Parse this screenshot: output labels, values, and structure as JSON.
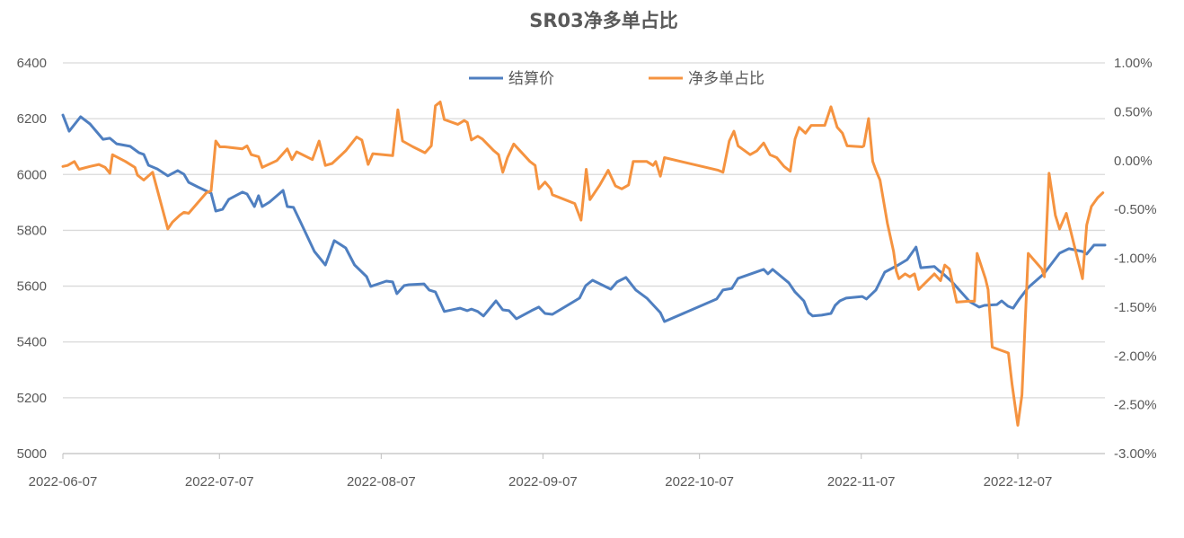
{
  "chart_data": {
    "type": "line",
    "title": "SR03净多单占比",
    "legend_position": "top-center",
    "grid": true,
    "x_start_date": "2022-06-07",
    "x_unit": "days since 2022-06-07",
    "xlim": [
      0,
      199.7
    ],
    "x_ticks": [
      {
        "day": 0,
        "label": "2022-06-07"
      },
      {
        "day": 30,
        "label": "2022-07-07"
      },
      {
        "day": 61,
        "label": "2022-08-07"
      },
      {
        "day": 92,
        "label": "2022-09-07"
      },
      {
        "day": 122,
        "label": "2022-10-07"
      },
      {
        "day": 153,
        "label": "2022-11-07"
      },
      {
        "day": 183,
        "label": "2022-12-07"
      }
    ],
    "y_left": {
      "ylim": [
        5000,
        6400
      ],
      "ticks": [
        5000,
        5200,
        5400,
        5600,
        5800,
        6000,
        6200,
        6400
      ],
      "tick_labels": [
        "5000",
        "5200",
        "5400",
        "5600",
        "5800",
        "6000",
        "6200",
        "6400"
      ]
    },
    "y_right": {
      "ylim": [
        -3.0,
        1.0
      ],
      "ticks": [
        -3.0,
        -2.5,
        -2.0,
        -1.5,
        -1.0,
        -0.5,
        0.0,
        0.5,
        1.0
      ],
      "tick_labels": [
        "-3.00%",
        "-2.50%",
        "-2.00%",
        "-1.50%",
        "-1.00%",
        "-0.50%",
        "0.00%",
        "0.50%",
        "1.00%"
      ]
    },
    "series": [
      {
        "name": "结算价",
        "axis": "left",
        "color": "#4f7fc0",
        "points": [
          [
            0,
            6213
          ],
          [
            1.2,
            6155
          ],
          [
            3.4,
            6207
          ],
          [
            5.2,
            6181
          ],
          [
            7.7,
            6126
          ],
          [
            9,
            6130
          ],
          [
            10.3,
            6110
          ],
          [
            12.9,
            6101
          ],
          [
            14.6,
            6078
          ],
          [
            15.5,
            6072
          ],
          [
            16.4,
            6033
          ],
          [
            18.1,
            6020
          ],
          [
            20.1,
            5995
          ],
          [
            22,
            6014
          ],
          [
            23.2,
            6001
          ],
          [
            24.1,
            5972
          ],
          [
            25.8,
            5956
          ],
          [
            28.4,
            5933
          ],
          [
            29.3,
            5869
          ],
          [
            30.6,
            5875
          ],
          [
            31.8,
            5911
          ],
          [
            34.4,
            5937
          ],
          [
            35.3,
            5930
          ],
          [
            36.7,
            5885
          ],
          [
            37.5,
            5924
          ],
          [
            38.2,
            5885
          ],
          [
            39.6,
            5901
          ],
          [
            42.2,
            5943
          ],
          [
            43,
            5885
          ],
          [
            44.2,
            5882
          ],
          [
            45.6,
            5827
          ],
          [
            48.2,
            5724
          ],
          [
            50.3,
            5676
          ],
          [
            52,
            5763
          ],
          [
            54.2,
            5737
          ],
          [
            55.9,
            5676
          ],
          [
            58.2,
            5634
          ],
          [
            59,
            5599
          ],
          [
            62,
            5618
          ],
          [
            63.2,
            5615
          ],
          [
            64,
            5573
          ],
          [
            65.4,
            5602
          ],
          [
            66.3,
            5605
          ],
          [
            69.2,
            5608
          ],
          [
            70.2,
            5586
          ],
          [
            71.4,
            5579
          ],
          [
            73.1,
            5509
          ],
          [
            76.1,
            5521
          ],
          [
            77.5,
            5512
          ],
          [
            78.3,
            5518
          ],
          [
            79.5,
            5509
          ],
          [
            80.6,
            5493
          ],
          [
            83,
            5547
          ],
          [
            84.3,
            5515
          ],
          [
            85.5,
            5512
          ],
          [
            86.9,
            5483
          ],
          [
            89.8,
            5512
          ],
          [
            91.2,
            5525
          ],
          [
            92.4,
            5502
          ],
          [
            93.8,
            5499
          ],
          [
            99,
            5557
          ],
          [
            100.2,
            5602
          ],
          [
            101.5,
            5621
          ],
          [
            105,
            5589
          ],
          [
            106.2,
            5615
          ],
          [
            107.9,
            5631
          ],
          [
            109.8,
            5586
          ],
          [
            111.9,
            5557
          ],
          [
            114.5,
            5505
          ],
          [
            115.3,
            5473
          ],
          [
            125.3,
            5554
          ],
          [
            126.5,
            5586
          ],
          [
            128.2,
            5592
          ],
          [
            129.4,
            5628
          ],
          [
            134.3,
            5660
          ],
          [
            135.1,
            5644
          ],
          [
            136,
            5660
          ],
          [
            139.1,
            5612
          ],
          [
            140.3,
            5579
          ],
          [
            142,
            5547
          ],
          [
            142.9,
            5505
          ],
          [
            143.7,
            5493
          ],
          [
            145.4,
            5496
          ],
          [
            147.2,
            5502
          ],
          [
            148,
            5531
          ],
          [
            148.9,
            5547
          ],
          [
            150.1,
            5557
          ],
          [
            153.2,
            5563
          ],
          [
            154,
            5554
          ],
          [
            155.8,
            5586
          ],
          [
            157.5,
            5650
          ],
          [
            160.1,
            5676
          ],
          [
            161.8,
            5695
          ],
          [
            163.5,
            5740
          ],
          [
            164.4,
            5666
          ],
          [
            167,
            5670
          ],
          [
            167.8,
            5657
          ],
          [
            168.7,
            5644
          ],
          [
            170.4,
            5615
          ],
          [
            173.8,
            5544
          ],
          [
            175.6,
            5525
          ],
          [
            176.6,
            5531
          ],
          [
            179,
            5534
          ],
          [
            179.9,
            5547
          ],
          [
            181.1,
            5528
          ],
          [
            182.1,
            5521
          ],
          [
            183.3,
            5554
          ],
          [
            185,
            5595
          ],
          [
            188,
            5644
          ],
          [
            191,
            5718
          ],
          [
            192.8,
            5734
          ],
          [
            195.4,
            5724
          ],
          [
            196.2,
            5715
          ],
          [
            197.6,
            5747
          ],
          [
            199.7,
            5747
          ]
        ]
      },
      {
        "name": "净多单占比",
        "axis": "right",
        "color": "#f59340",
        "points": [
          [
            0,
            -0.06
          ],
          [
            0.9,
            -0.05
          ],
          [
            2.2,
            -0.01
          ],
          [
            3.1,
            -0.09
          ],
          [
            5.2,
            -0.06
          ],
          [
            6.9,
            -0.04
          ],
          [
            8.1,
            -0.07
          ],
          [
            9,
            -0.13
          ],
          [
            9.5,
            0.06
          ],
          [
            12,
            -0.01
          ],
          [
            13.8,
            -0.07
          ],
          [
            14.3,
            -0.15
          ],
          [
            15.5,
            -0.2
          ],
          [
            17.2,
            -0.12
          ],
          [
            20.1,
            -0.7
          ],
          [
            21,
            -0.63
          ],
          [
            22.4,
            -0.56
          ],
          [
            23.2,
            -0.53
          ],
          [
            24.1,
            -0.54
          ],
          [
            27.5,
            -0.33
          ],
          [
            28.4,
            -0.31
          ],
          [
            29.3,
            0.2
          ],
          [
            30.1,
            0.14
          ],
          [
            31,
            0.14
          ],
          [
            34.4,
            0.12
          ],
          [
            35.3,
            0.15
          ],
          [
            36.1,
            0.06
          ],
          [
            37.5,
            0.04
          ],
          [
            38.2,
            -0.07
          ],
          [
            41,
            0.0
          ],
          [
            43,
            0.12
          ],
          [
            43.9,
            0.01
          ],
          [
            44.8,
            0.09
          ],
          [
            47.8,
            0.01
          ],
          [
            49.1,
            0.2
          ],
          [
            50.3,
            -0.05
          ],
          [
            51.6,
            -0.03
          ],
          [
            54.2,
            0.1
          ],
          [
            56.3,
            0.24
          ],
          [
            57.3,
            0.21
          ],
          [
            58.5,
            -0.04
          ],
          [
            59.4,
            0.07
          ],
          [
            63.2,
            0.05
          ],
          [
            64.2,
            0.52
          ],
          [
            65.1,
            0.2
          ],
          [
            67.1,
            0.14
          ],
          [
            69.4,
            0.08
          ],
          [
            70.6,
            0.15
          ],
          [
            71.4,
            0.56
          ],
          [
            72.3,
            0.6
          ],
          [
            73.1,
            0.42
          ],
          [
            75.7,
            0.37
          ],
          [
            76.9,
            0.41
          ],
          [
            77.5,
            0.39
          ],
          [
            78.3,
            0.21
          ],
          [
            79.5,
            0.25
          ],
          [
            80.4,
            0.22
          ],
          [
            82.6,
            0.1
          ],
          [
            83.5,
            0.06
          ],
          [
            84.3,
            -0.12
          ],
          [
            85.2,
            0.03
          ],
          [
            86.4,
            0.17
          ],
          [
            89.5,
            -0.01
          ],
          [
            90.5,
            -0.05
          ],
          [
            91.2,
            -0.29
          ],
          [
            92.4,
            -0.22
          ],
          [
            93.5,
            -0.29
          ],
          [
            93.8,
            -0.35
          ],
          [
            98.1,
            -0.44
          ],
          [
            99.3,
            -0.61
          ],
          [
            100.3,
            -0.09
          ],
          [
            101,
            -0.4
          ],
          [
            102.9,
            -0.25
          ],
          [
            104.5,
            -0.1
          ],
          [
            105.9,
            -0.26
          ],
          [
            107.1,
            -0.29
          ],
          [
            108.4,
            -0.25
          ],
          [
            109.3,
            -0.01
          ],
          [
            111,
            -0.01
          ],
          [
            111.9,
            -0.01
          ],
          [
            113.1,
            -0.05
          ],
          [
            113.6,
            -0.01
          ],
          [
            114.5,
            -0.16
          ],
          [
            115.3,
            0.03
          ],
          [
            125.6,
            -0.1
          ],
          [
            126.5,
            -0.12
          ],
          [
            127.7,
            0.2
          ],
          [
            128.6,
            0.3
          ],
          [
            129.4,
            0.15
          ],
          [
            131.7,
            0.06
          ],
          [
            133,
            0.1
          ],
          [
            134.3,
            0.18
          ],
          [
            135.5,
            0.06
          ],
          [
            136.8,
            0.03
          ],
          [
            138.2,
            -0.06
          ],
          [
            139.4,
            -0.11
          ],
          [
            140.3,
            0.22
          ],
          [
            141.1,
            0.34
          ],
          [
            141.7,
            0.31
          ],
          [
            142.3,
            0.28
          ],
          [
            143.4,
            0.36
          ],
          [
            146,
            0.36
          ],
          [
            147.2,
            0.55
          ],
          [
            148.4,
            0.34
          ],
          [
            149.4,
            0.28
          ],
          [
            150.3,
            0.15
          ],
          [
            153.2,
            0.14
          ],
          [
            153.5,
            0.15
          ],
          [
            154.4,
            0.43
          ],
          [
            155.2,
            -0.01
          ],
          [
            155.8,
            -0.1
          ],
          [
            156.6,
            -0.2
          ],
          [
            158,
            -0.64
          ],
          [
            159.2,
            -0.93
          ],
          [
            159.7,
            -1.13
          ],
          [
            160.2,
            -1.21
          ],
          [
            161.4,
            -1.16
          ],
          [
            162.3,
            -1.19
          ],
          [
            163.2,
            -1.16
          ],
          [
            164,
            -1.32
          ],
          [
            167,
            -1.16
          ],
          [
            168.2,
            -1.23
          ],
          [
            169,
            -1.07
          ],
          [
            169.9,
            -1.11
          ],
          [
            171.3,
            -1.45
          ],
          [
            173.5,
            -1.44
          ],
          [
            174.7,
            -1.44
          ],
          [
            175.2,
            -0.95
          ],
          [
            176.8,
            -1.21
          ],
          [
            177.3,
            -1.32
          ],
          [
            178.1,
            -1.91
          ],
          [
            181.2,
            -1.97
          ],
          [
            181.9,
            -2.29
          ],
          [
            183,
            -2.71
          ],
          [
            183.8,
            -2.4
          ],
          [
            185,
            -0.95
          ],
          [
            187.6,
            -1.11
          ],
          [
            188.1,
            -1.19
          ],
          [
            189,
            -0.13
          ],
          [
            190.2,
            -0.56
          ],
          [
            191,
            -0.7
          ],
          [
            192.3,
            -0.54
          ],
          [
            195.4,
            -1.21
          ],
          [
            196.2,
            -0.66
          ],
          [
            197.1,
            -0.47
          ],
          [
            198.3,
            -0.38
          ],
          [
            199.3,
            -0.33
          ]
        ]
      }
    ]
  }
}
